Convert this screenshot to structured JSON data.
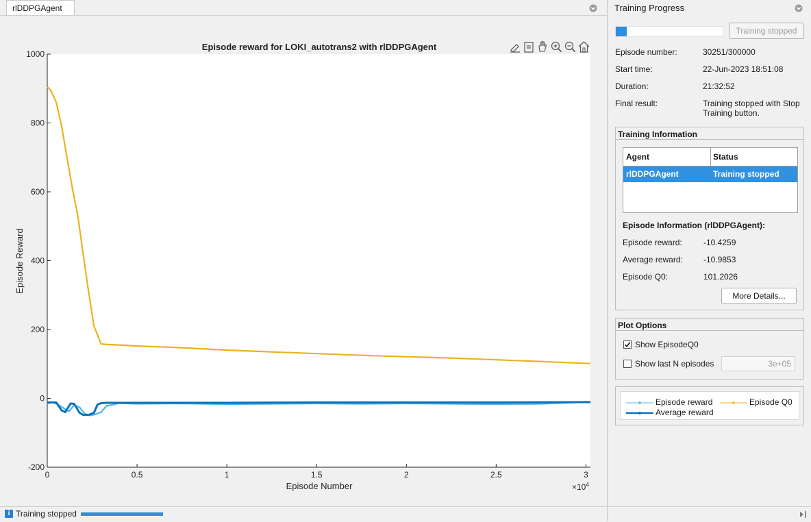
{
  "doc_tab": {
    "label": "rlDDPGAgent"
  },
  "panel": {
    "title": "Training Progress",
    "progress_fraction": 0.1,
    "stop_button_label": "Training stopped",
    "fields": [
      {
        "label": "Episode number:",
        "value": "30251/300000"
      },
      {
        "label": "Start time:",
        "value": "22-Jun-2023 18:51:08"
      },
      {
        "label": "Duration:",
        "value": "21:32:52"
      },
      {
        "label": "Final result:",
        "value_line1": "Training stopped with Stop",
        "value_line2": "Training button."
      }
    ],
    "training_info": {
      "title": "Training Information",
      "columns": [
        "Agent",
        "Status"
      ],
      "rows": [
        {
          "agent": "rlDDPGAgent",
          "status": "Training stopped"
        }
      ],
      "episode_info_title": "Episode Information (rlDDPGAgent):",
      "episode_info": [
        {
          "label": "Episode reward:",
          "value": "-10.4259"
        },
        {
          "label": "Average reward:",
          "value": "-10.9853"
        },
        {
          "label": "Episode Q0:",
          "value": "101.2026"
        }
      ],
      "more_details_label": "More Details..."
    },
    "plot_options": {
      "title": "Plot Options",
      "show_q0_label": "Show EpisodeQ0",
      "show_q0_checked": true,
      "show_last_n_label": "Show last N episodes",
      "show_last_n_checked": false,
      "last_n_value": "3e+05"
    },
    "legend": {
      "episode_reward": "Episode reward",
      "episode_q0": "Episode Q0",
      "average_reward": "Average reward"
    }
  },
  "status_bar": {
    "text": "Training stopped",
    "info_icon": "i"
  },
  "colors": {
    "episode_reward": "#4db3ea",
    "average_reward": "#0a72bd",
    "episode_q0": "#edb120",
    "selection": "#3091e0"
  },
  "chart_data": {
    "type": "line",
    "title": "Episode reward for LOKI_autotrans2 with rlDDPGAgent",
    "xlabel": "Episode Number",
    "ylabel": "Episode Reward",
    "x_exponent_label": "×10",
    "x_exponent_power": "4",
    "xlim": [
      0,
      30251
    ],
    "ylim": [
      -200,
      1000
    ],
    "xticks": [
      0,
      5000,
      10000,
      15000,
      20000,
      25000,
      30000
    ],
    "xtick_labels": [
      "0",
      "0.5",
      "1",
      "1.5",
      "2",
      "2.5",
      "3"
    ],
    "yticks": [
      -200,
      0,
      200,
      400,
      600,
      800,
      1000
    ],
    "ytick_labels": [
      "-200",
      "0",
      "200",
      "400",
      "600",
      "800",
      "1000"
    ],
    "grid": false,
    "series": [
      {
        "name": "Episode Q0",
        "x": [
          0,
          200,
          500,
          800,
          1100,
          1400,
          1700,
          2000,
          2300,
          2600,
          3000,
          3200,
          4000,
          5000,
          7500,
          10000,
          12500,
          15000,
          17500,
          20000,
          22500,
          25000,
          27500,
          30251
        ],
        "y": [
          905,
          895,
          860,
          790,
          700,
          610,
          530,
          420,
          310,
          210,
          158,
          157,
          155,
          152,
          147,
          140,
          135,
          130,
          125,
          121,
          117,
          112,
          107,
          101
        ]
      },
      {
        "name": "Episode reward",
        "x": [
          0,
          300,
          600,
          900,
          1200,
          1500,
          1800,
          2100,
          2400,
          2700,
          3000,
          3300,
          3700,
          4000,
          5000,
          7500,
          10000,
          12500,
          15000,
          17500,
          20000,
          22500,
          25000,
          27500,
          30251
        ],
        "y": [
          -15,
          -12,
          -18,
          -28,
          -38,
          -20,
          -26,
          -45,
          -50,
          -46,
          -40,
          -22,
          -18,
          -14,
          -16,
          -15,
          -17,
          -16,
          -15,
          -16,
          -15,
          -16,
          -17,
          -16,
          -10.4259
        ]
      },
      {
        "name": "Average reward",
        "x": [
          0,
          500,
          800,
          1000,
          1300,
          1500,
          1800,
          2000,
          2300,
          2600,
          2800,
          3000,
          3300,
          4000,
          5000,
          10000,
          15000,
          20000,
          25000,
          30251
        ],
        "y": [
          -12,
          -12,
          -35,
          -40,
          -15,
          -16,
          -42,
          -48,
          -48,
          -42,
          -18,
          -14,
          -13,
          -13,
          -13,
          -13,
          -12,
          -12,
          -12,
          -10.9853
        ]
      }
    ]
  }
}
